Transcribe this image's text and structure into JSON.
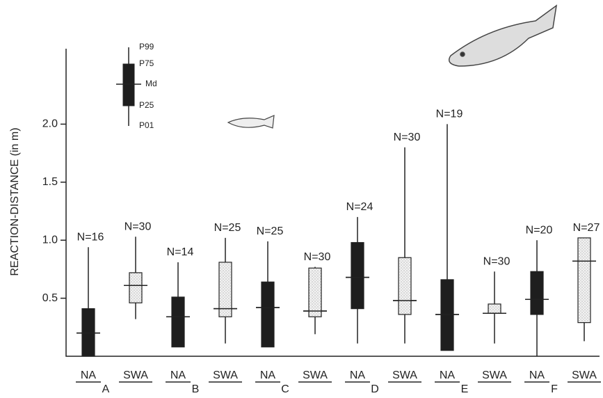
{
  "chart_data": {
    "type": "box",
    "y_label": "REACTION-DISTANCE (in m)",
    "ylim": [
      0,
      2.65
    ],
    "yticks": [
      0.5,
      {
        "value": 1.0,
        "label": "1.0"
      },
      1.5,
      {
        "value": 2.0,
        "label": "2.0"
      }
    ],
    "categories": [
      "A",
      "B",
      "C",
      "D",
      "E",
      "F"
    ],
    "legend_key": [
      "P99",
      "P75",
      "Md",
      "P25",
      "P01"
    ],
    "series": [
      {
        "name": "NA",
        "color": "#1e1e1e",
        "p01": [
          0,
          0.08,
          0.08,
          0.11,
          0.05,
          0
        ],
        "p25": [
          0,
          0.08,
          0.08,
          0.41,
          0.05,
          0.36
        ],
        "median": [
          0.2,
          0.34,
          0.42,
          0.68,
          0.36,
          0.49
        ],
        "p75": [
          0.41,
          0.51,
          0.64,
          0.98,
          0.66,
          0.73
        ],
        "p99": [
          0.94,
          0.81,
          0.99,
          1.2,
          2.0,
          1.0
        ],
        "n_labels": [
          "N=16",
          "N=14",
          "N=25",
          "N=24",
          "N=19",
          "N=20"
        ]
      },
      {
        "name": "SWA",
        "color": "#ececec",
        "p01": [
          0.32,
          0.11,
          0.19,
          0.11,
          0.11,
          0.13
        ],
        "p25": [
          0.46,
          0.34,
          0.34,
          0.36,
          0.37,
          0.29
        ],
        "median": [
          0.61,
          0.41,
          0.39,
          0.48,
          0.37,
          0.82
        ],
        "p75": [
          0.72,
          0.81,
          0.76,
          0.85,
          0.45,
          1.02
        ],
        "p99": [
          1.03,
          1.02,
          0.77,
          1.8,
          0.73,
          1.02
        ],
        "n_labels": [
          "N=30",
          "N=25",
          "N=30",
          "N=30",
          "N=30",
          "N=27"
        ]
      }
    ]
  }
}
